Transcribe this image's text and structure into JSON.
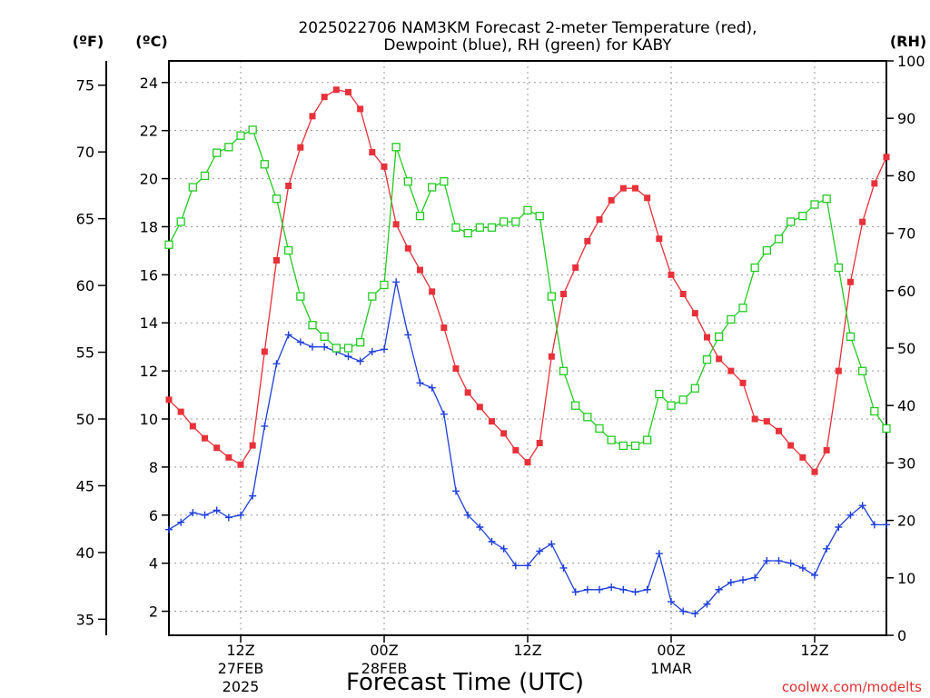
{
  "chart_data": {
    "type": "line",
    "title": "2025022706 NAM3KM Forecast 2-meter Temperature (red),",
    "subtitle": "Dewpoint (blue), RH (green) for KABY",
    "xlabel": "Forecast Time (UTC)",
    "ylabel_left_f": "(ºF)",
    "ylabel_left_c": "(ºC)",
    "ylabel_right": "(RH)",
    "watermark": "coolwx.com/modelts",
    "x_start_hour": 6,
    "x_end_hour": 66,
    "ylim_c": [
      1.0,
      24.9
    ],
    "ylim_rh": [
      0,
      100
    ],
    "grid": true,
    "x_ticks": [
      {
        "hour": 12,
        "line1": "12Z",
        "line2": "27FEB",
        "line3": "2025"
      },
      {
        "hour": 24,
        "line1": "00Z",
        "line2": "28FEB",
        "line3": ""
      },
      {
        "hour": 36,
        "line1": "12Z",
        "line2": "",
        "line3": ""
      },
      {
        "hour": 48,
        "line1": "00Z",
        "line2": "1MAR",
        "line3": ""
      },
      {
        "hour": 60,
        "line1": "12Z",
        "line2": "",
        "line3": ""
      }
    ],
    "y_ticks_c": [
      2,
      4,
      6,
      8,
      10,
      12,
      14,
      16,
      18,
      20,
      22,
      24
    ],
    "y_ticks_f": [
      35,
      40,
      45,
      50,
      55,
      60,
      65,
      70,
      75
    ],
    "y_ticks_rh": [
      0,
      10,
      20,
      30,
      40,
      50,
      60,
      70,
      80,
      90,
      100
    ],
    "series": [
      {
        "name": "Temperature",
        "unit": "C",
        "color": "#e8313a",
        "marker": "filled-square",
        "values": [
          10.8,
          10.3,
          9.7,
          9.2,
          8.8,
          8.4,
          8.1,
          8.9,
          12.8,
          16.6,
          19.7,
          21.3,
          22.6,
          23.4,
          23.7,
          23.6,
          22.9,
          21.1,
          20.5,
          18.1,
          17.1,
          16.2,
          15.3,
          13.8,
          12.1,
          11.1,
          10.5,
          9.9,
          9.4,
          8.7,
          8.2,
          9.0,
          12.6,
          15.2,
          16.3,
          17.4,
          18.3,
          19.1,
          19.6,
          19.6,
          19.2,
          17.5,
          16.0,
          15.2,
          14.4,
          13.4,
          12.5,
          12.0,
          11.5,
          10.0,
          9.9,
          9.5,
          8.9,
          8.4,
          7.8,
          8.7,
          12.0,
          15.7,
          18.2,
          19.8,
          20.9
        ]
      },
      {
        "name": "Dewpoint",
        "unit": "C",
        "color": "#1f3fdc",
        "marker": "plus",
        "values": [
          5.4,
          5.7,
          6.1,
          6.0,
          6.2,
          5.9,
          6.0,
          6.8,
          9.7,
          12.3,
          13.5,
          13.2,
          13.0,
          13.0,
          12.8,
          12.6,
          12.4,
          12.8,
          12.9,
          15.7,
          13.5,
          11.5,
          11.3,
          10.2,
          7.0,
          6.0,
          5.5,
          4.9,
          4.6,
          3.9,
          3.9,
          4.5,
          4.8,
          3.8,
          2.8,
          2.9,
          2.9,
          3.0,
          2.9,
          2.8,
          2.9,
          4.4,
          2.4,
          2.0,
          1.9,
          2.3,
          2.9,
          3.2,
          3.3,
          3.4,
          4.1,
          4.1,
          4.0,
          3.8,
          3.5,
          4.6,
          5.5,
          6.0,
          6.4,
          5.6,
          5.6
        ]
      },
      {
        "name": "RH",
        "unit": "%",
        "color": "#22cc22",
        "marker": "open-square",
        "values": [
          68,
          72,
          78,
          80,
          84,
          85,
          87,
          88,
          82,
          76,
          67,
          59,
          54,
          52,
          50,
          50,
          51,
          59,
          61,
          85,
          79,
          73,
          78,
          79,
          71,
          70,
          71,
          71,
          72,
          72,
          74,
          73,
          59,
          46,
          40,
          38,
          36,
          34,
          33,
          33,
          34,
          42,
          40,
          41,
          43,
          48,
          52,
          55,
          57,
          64,
          67,
          69,
          72,
          73,
          75,
          76,
          64,
          52,
          46,
          39,
          36
        ]
      }
    ]
  }
}
